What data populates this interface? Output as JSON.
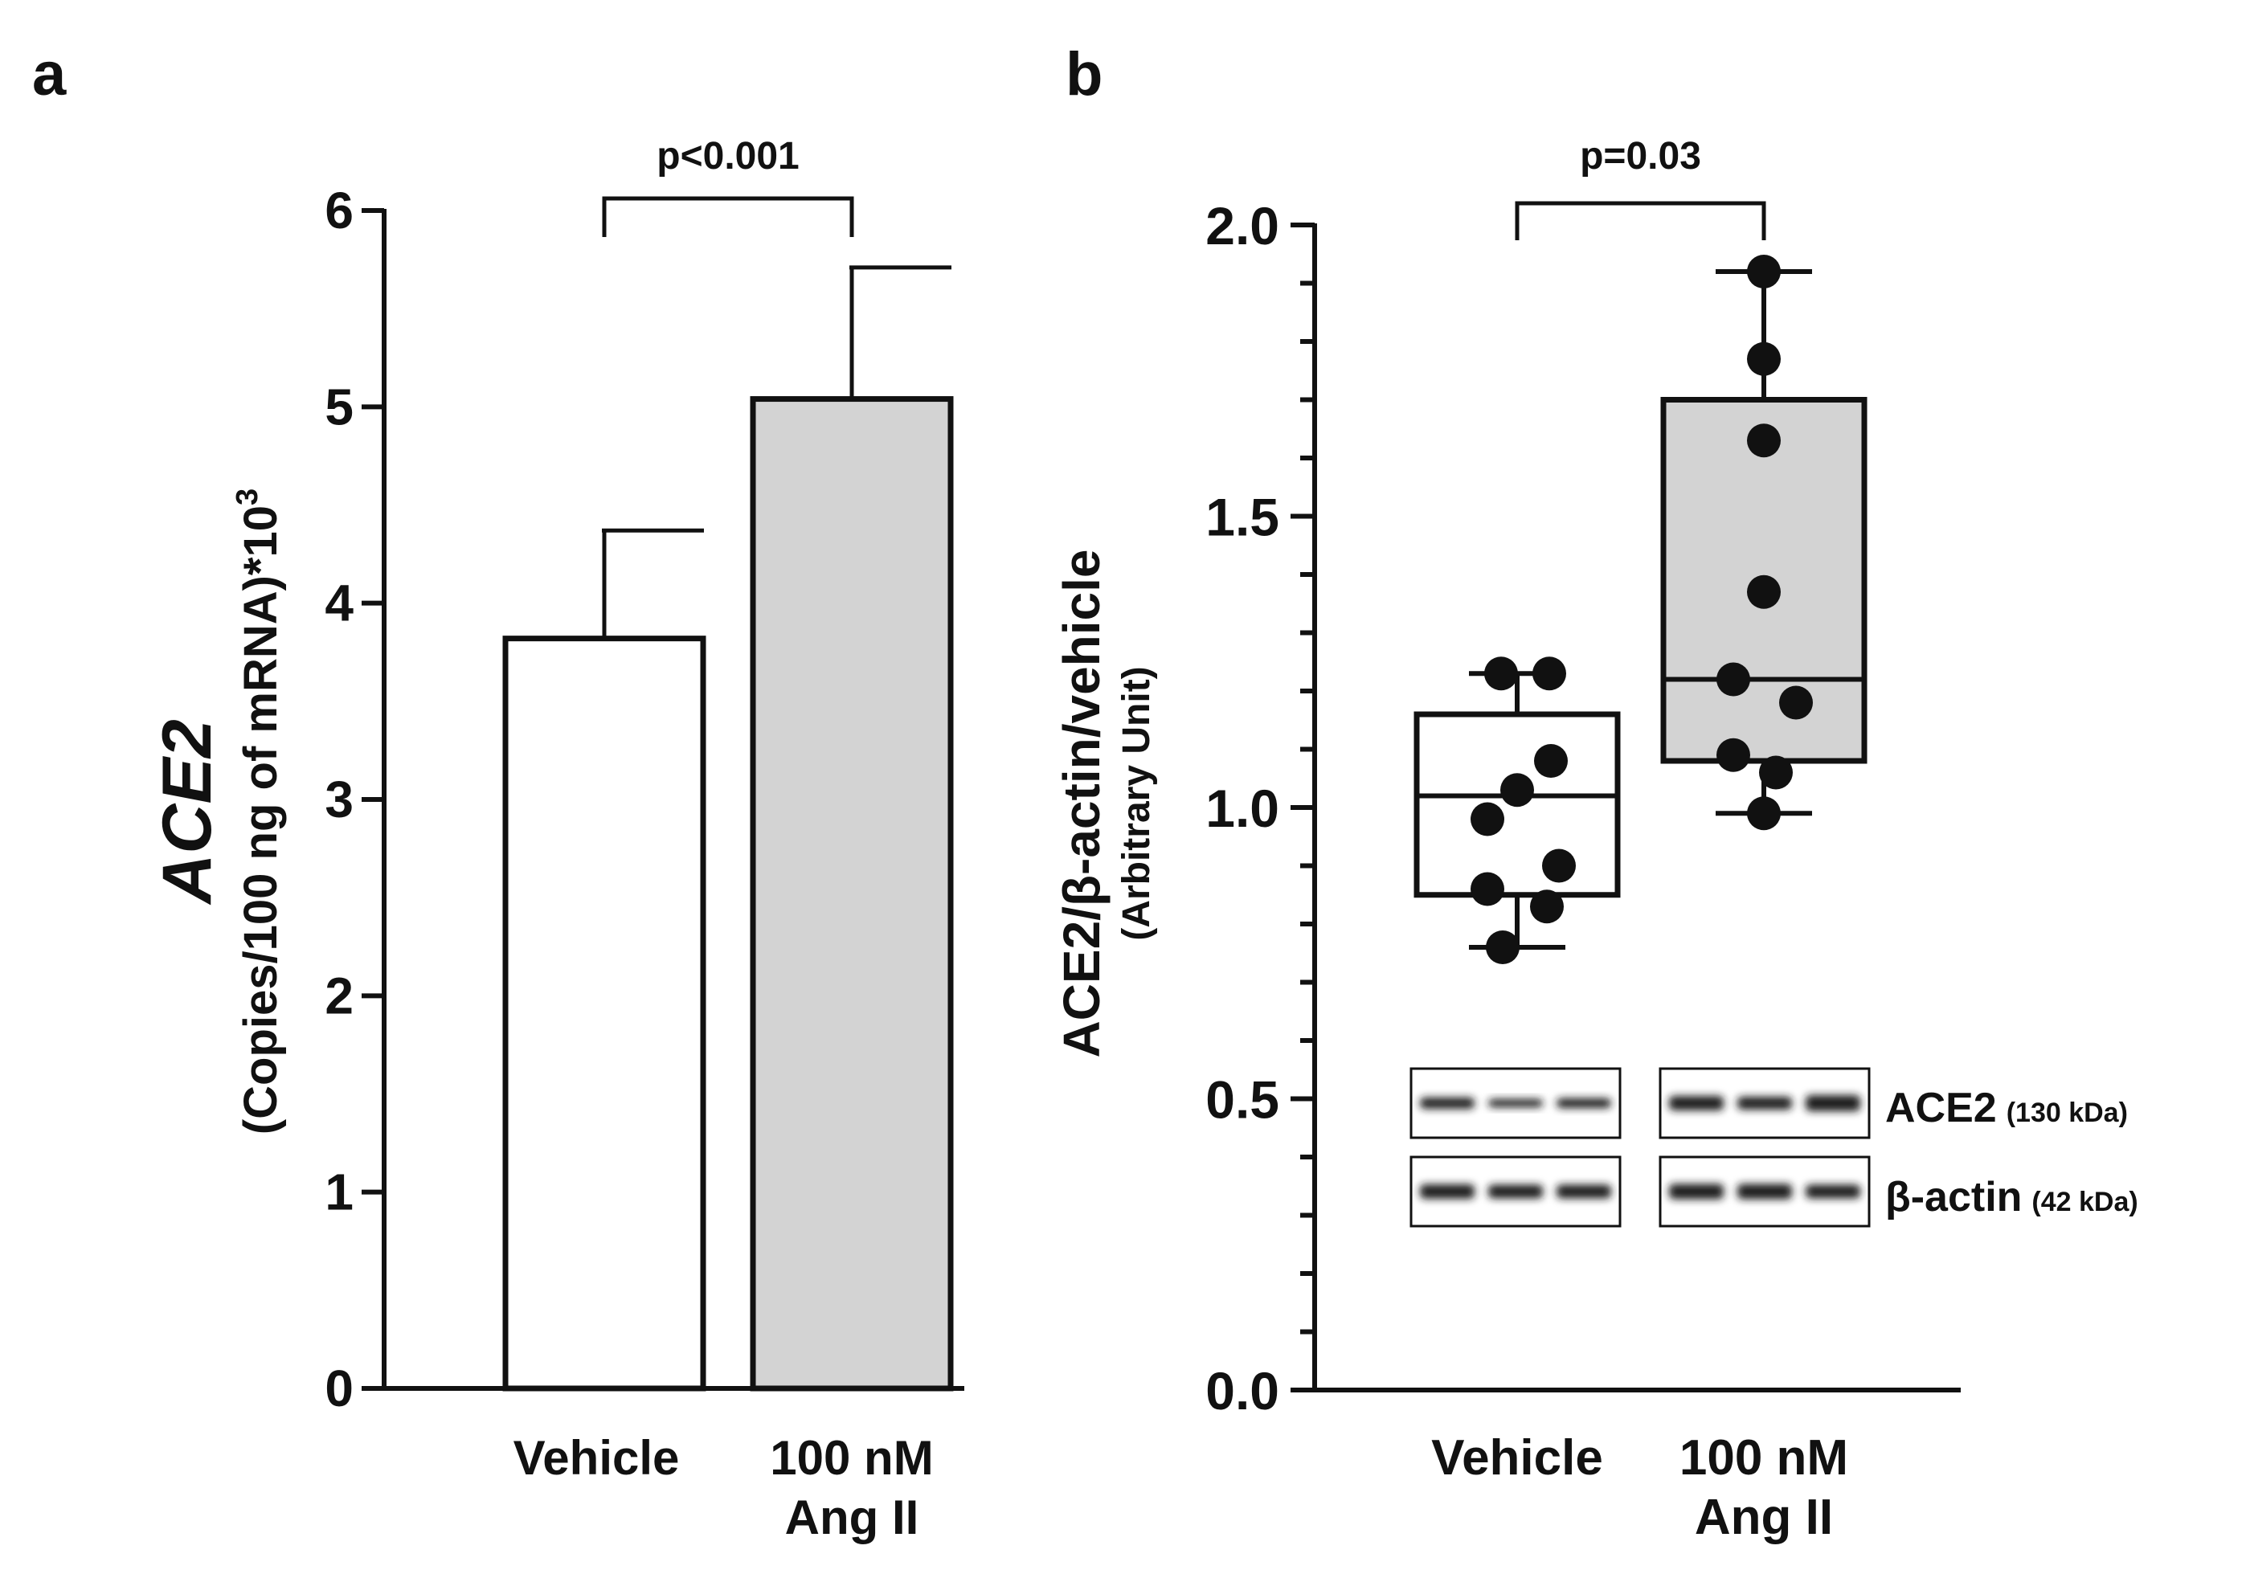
{
  "panels": {
    "a": {
      "letter": "a"
    },
    "b": {
      "letter": "b"
    }
  },
  "colors": {
    "ink": "#111111",
    "bar_fill_angII": "#d3d3d3",
    "bar_fill_vehicle": "#ffffff"
  },
  "chart_data": [
    {
      "panel": "a",
      "type": "bar",
      "categories": [
        "Vehicle",
        "100 nM Ang II"
      ],
      "category_lines": [
        [
          "Vehicle"
        ],
        [
          "100 nM",
          "Ang II"
        ]
      ],
      "values": [
        3.82,
        5.04
      ],
      "error_upper": [
        4.37,
        5.71
      ],
      "ylim": [
        0,
        6
      ],
      "yticks": [
        "0",
        "1",
        "2",
        "3",
        "4",
        "5",
        "6"
      ],
      "ylabel_main": "ACE2",
      "ylabel_sub": "(Copies/100 ng of mRNA)*10",
      "ylabel_sup": "3",
      "significance": {
        "text": "p<0.001",
        "between": [
          0,
          1
        ]
      },
      "fills": [
        "#ffffff",
        "#d3d3d3"
      ]
    },
    {
      "panel": "b",
      "type": "box",
      "categories": [
        "Vehicle",
        "100 nM Ang II"
      ],
      "category_lines": [
        [
          "Vehicle"
        ],
        [
          "100 nM",
          "Ang II"
        ]
      ],
      "boxes": [
        {
          "name": "Vehicle",
          "min": 0.76,
          "q1": 0.85,
          "median": 1.02,
          "q3": 1.16,
          "max": 1.23,
          "points": [
            0.76,
            0.83,
            0.86,
            0.9,
            0.98,
            1.03,
            1.08,
            1.23,
            1.23
          ]
        },
        {
          "name": "100 nM Ang II",
          "min": 0.99,
          "q1": 1.08,
          "median": 1.22,
          "q3": 1.7,
          "max": 1.92,
          "points": [
            0.99,
            1.06,
            1.09,
            1.18,
            1.22,
            1.37,
            1.63,
            1.77,
            1.92
          ]
        }
      ],
      "ylim": [
        0,
        2.0
      ],
      "yticks": [
        "0.0",
        "0.5",
        "1.0",
        "1.5",
        "2.0"
      ],
      "ylabel_main": "ACE2/β-actin/vehicle",
      "ylabel_sub": "(Arbitrary Unit)",
      "significance": {
        "text": "p=0.03",
        "between": [
          0,
          1
        ]
      },
      "fills": [
        "#ffffff",
        "#d3d3d3"
      ],
      "blot": {
        "rows": [
          {
            "protein": "ACE2",
            "weight": "(130 kDa)"
          },
          {
            "protein": "β-actin",
            "weight": "(42 kDa)"
          }
        ]
      }
    }
  ]
}
